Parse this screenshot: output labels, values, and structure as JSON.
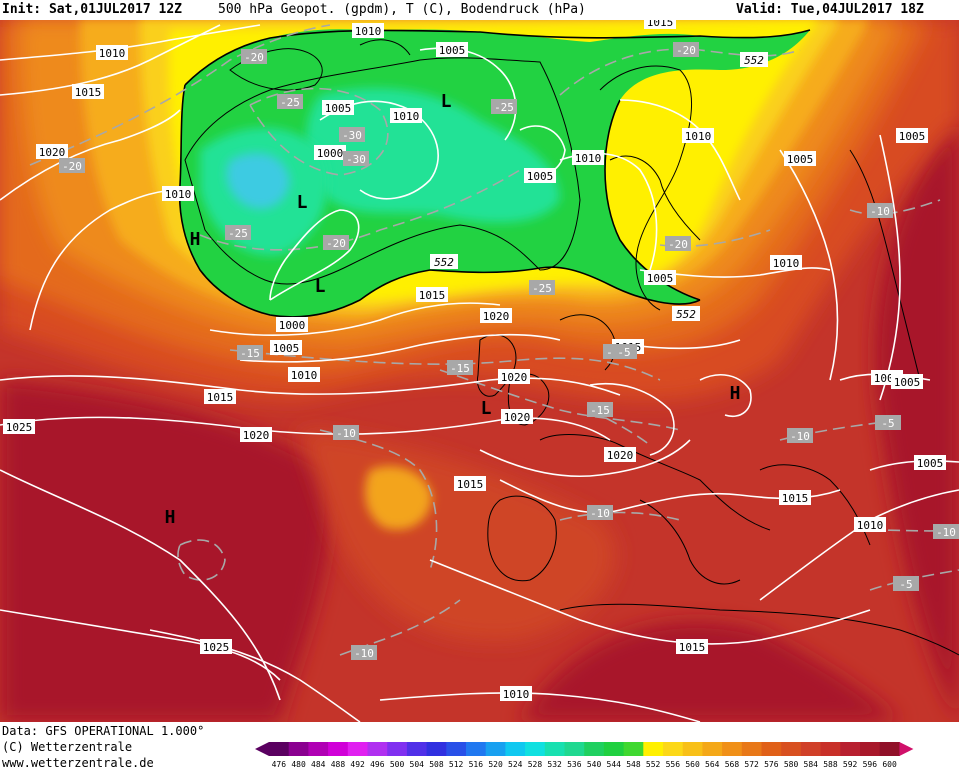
{
  "header": {
    "init": "Init: Sat,01JUL2017 12Z",
    "title": "500 hPa Geopot. (gpdm), T (C), Bodendruck (hPa)",
    "valid": "Valid: Tue,04JUL2017 18Z"
  },
  "footer": {
    "line1": "Data: GFS OPERATIONAL 1.000°",
    "line2": "(C) Wetterzentrale",
    "line3": "www.wetterzentrale.de"
  },
  "colors": {
    "background_field": "#c0322a",
    "deep_red": "#a8182a",
    "orange": "#e0641e",
    "light_orange": "#f2a020",
    "yellow": "#f8d21a",
    "bright_yellow": "#fff000",
    "green": "#20d440",
    "teal": "#22e090",
    "light_blue": "#38c8e0",
    "isobar": "#ffffff",
    "isotherm": "#a8a8a8"
  },
  "scale": {
    "values": [
      "476",
      "480",
      "484",
      "488",
      "492",
      "496",
      "500",
      "504",
      "508",
      "512",
      "516",
      "520",
      "524",
      "528",
      "532",
      "536",
      "540",
      "544",
      "548",
      "552",
      "556",
      "560",
      "564",
      "568",
      "572",
      "576",
      "580",
      "584",
      "588",
      "592",
      "596",
      "600"
    ],
    "colors": [
      "#5a0060",
      "#8a0090",
      "#b000b4",
      "#d000d8",
      "#e020f0",
      "#b030f0",
      "#8030f0",
      "#5030e8",
      "#3030e0",
      "#2850e8",
      "#2078f0",
      "#18a0f0",
      "#10c8f0",
      "#10e0e0",
      "#18e0b0",
      "#20d890",
      "#20d060",
      "#20d040",
      "#40d830",
      "#fff000",
      "#fcd818",
      "#f8c018",
      "#f4a818",
      "#f09018",
      "#e87818",
      "#e06018",
      "#d85020",
      "#d04028",
      "#c83028",
      "#b82030",
      "#a8182a",
      "#901028",
      "#d0106a"
    ]
  },
  "labels": {
    "isobars": [
      {
        "t": "1010"
      },
      {
        "t": "1015"
      },
      {
        "t": "1020"
      },
      {
        "t": "1010"
      },
      {
        "t": "1005"
      },
      {
        "t": "1005"
      },
      {
        "t": "1010"
      },
      {
        "t": "1000"
      },
      {
        "t": "1010"
      },
      {
        "t": "1005"
      },
      {
        "t": "1010"
      },
      {
        "t": "1005"
      },
      {
        "t": "1010"
      },
      {
        "t": "1005"
      },
      {
        "t": "1015"
      },
      {
        "t": "1020"
      },
      {
        "t": "1000"
      },
      {
        "t": "1005"
      },
      {
        "t": "1010"
      },
      {
        "t": "1015"
      },
      {
        "t": "1015"
      },
      {
        "t": "1020"
      },
      {
        "t": "1020"
      },
      {
        "t": "1020"
      },
      {
        "t": "1025"
      },
      {
        "t": "1020"
      },
      {
        "t": "1015"
      },
      {
        "t": "1015"
      },
      {
        "t": "1005"
      },
      {
        "t": "1005"
      },
      {
        "t": "1005"
      },
      {
        "t": "1015"
      },
      {
        "t": "1010"
      },
      {
        "t": "1025"
      },
      {
        "t": "1015"
      },
      {
        "t": "1010"
      },
      {
        "t": "1015"
      },
      {
        "t": "1010"
      },
      {
        "t": "1005"
      }
    ],
    "isotherms": [
      {
        "t": "-20"
      },
      {
        "t": "-20"
      },
      {
        "t": "-25"
      },
      {
        "t": "-30"
      },
      {
        "t": "-30"
      },
      {
        "t": "-25"
      },
      {
        "t": "-20"
      },
      {
        "t": "-20"
      },
      {
        "t": "-25"
      },
      {
        "t": "-25"
      },
      {
        "t": "-20"
      },
      {
        "t": "-15"
      },
      {
        "t": "-15"
      },
      {
        "t": "-20"
      },
      {
        "t": "-15"
      },
      {
        "t": "-10"
      },
      {
        "t": "-10"
      },
      {
        "t": "-10"
      },
      {
        "t": "-10"
      },
      {
        "t": "-5"
      },
      {
        "t": "-10"
      },
      {
        "t": "-5"
      },
      {
        "t": "-10"
      },
      {
        "t": "-5"
      }
    ],
    "geopotential": [
      {
        "t": "552"
      },
      {
        "t": "552"
      },
      {
        "t": "552"
      }
    ],
    "pressure_centers": [
      {
        "t": "L"
      },
      {
        "t": "L"
      },
      {
        "t": "L"
      },
      {
        "t": "H"
      },
      {
        "t": "H"
      },
      {
        "t": "H"
      },
      {
        "t": "L"
      }
    ]
  }
}
